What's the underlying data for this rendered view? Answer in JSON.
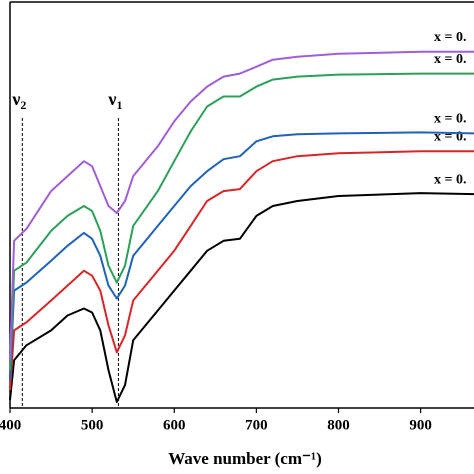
{
  "chart_data": {
    "type": "line",
    "xlabel": "Wave number (cm⁻¹)",
    "x": [
      400,
      405,
      420,
      450,
      470,
      490,
      500,
      510,
      520,
      530,
      540,
      550,
      580,
      600,
      620,
      640,
      660,
      680,
      700,
      720,
      750,
      800,
      900,
      965
    ],
    "xlim": [
      400,
      965
    ],
    "xticks": [
      400,
      500,
      600,
      700,
      800,
      900
    ],
    "ylim": [
      0,
      408
    ],
    "series": [
      {
        "name": "x = 0.",
        "color": "#000000",
        "values": [
          8,
          48,
          63,
          78,
          93,
          100,
          96,
          78,
          38,
          6,
          23,
          68,
          98,
          118,
          138,
          158,
          168,
          170,
          193,
          203,
          208,
          213,
          216,
          215
        ]
      },
      {
        "name": "x = 0.",
        "color": "#d62728",
        "values": [
          18,
          78,
          86,
          108,
          123,
          138,
          133,
          118,
          83,
          56,
          73,
          108,
          138,
          158,
          183,
          208,
          218,
          220,
          238,
          248,
          253,
          256,
          258,
          258
        ]
      },
      {
        "name": "x = 0.",
        "color": "#1f63b5",
        "values": [
          28,
          118,
          126,
          148,
          163,
          176,
          170,
          153,
          123,
          110,
          123,
          153,
          183,
          203,
          223,
          238,
          250,
          253,
          268,
          273,
          275,
          276,
          277,
          276
        ]
      },
      {
        "name": "x = 0.",
        "color": "#2ca05a",
        "values": [
          38,
          138,
          146,
          178,
          193,
          203,
          198,
          178,
          143,
          126,
          143,
          183,
          218,
          248,
          278,
          303,
          313,
          313,
          323,
          330,
          333,
          335,
          336,
          336
        ]
      },
      {
        "name": "x = 0.",
        "color": "#a05fd6",
        "values": [
          48,
          168,
          180,
          218,
          233,
          248,
          243,
          223,
          203,
          196,
          208,
          233,
          263,
          288,
          308,
          323,
          333,
          336,
          343,
          350,
          353,
          356,
          358,
          358
        ]
      }
    ],
    "annotations": [
      {
        "text": "ν",
        "sub": "2",
        "x": 415
      },
      {
        "text": "ν",
        "sub": "1",
        "x": 532
      }
    ]
  }
}
